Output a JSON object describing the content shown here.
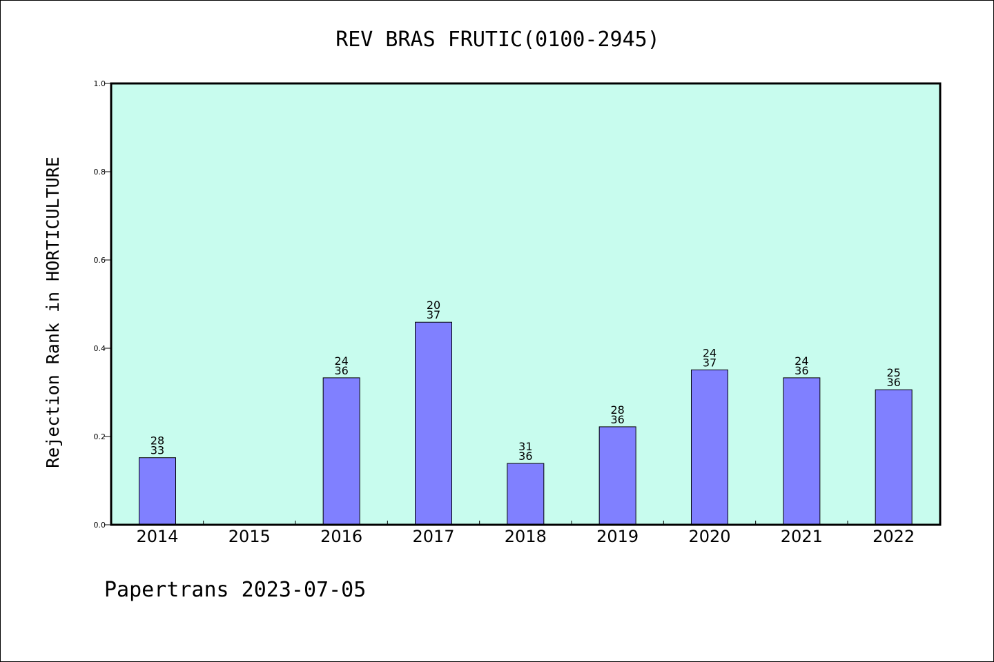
{
  "chart_data": {
    "type": "bar",
    "title": "REV BRAS FRUTIC(0100-2945)",
    "xlabel": "",
    "ylabel": "Rejection Rank in HORTICULTURE",
    "ylim": [
      0,
      1.0
    ],
    "yticks": [
      "0.0",
      "0.2",
      "0.4",
      "0.6",
      "0.8",
      "1.0"
    ],
    "categories": [
      "2014",
      "2015",
      "2016",
      "2017",
      "2018",
      "2019",
      "2020",
      "2021",
      "2022"
    ],
    "values": [
      0.152,
      null,
      0.333,
      0.459,
      0.139,
      0.222,
      0.351,
      0.333,
      0.306
    ],
    "labels_top": [
      "28",
      "",
      "24",
      "20",
      "31",
      "28",
      "24",
      "24",
      "25"
    ],
    "labels_bottom": [
      "33",
      "",
      "36",
      "37",
      "36",
      "36",
      "37",
      "36",
      "36"
    ],
    "grid": false,
    "legend": "none",
    "colors": {
      "plot_background": "#c8fcee",
      "bar_fill": "#8080ff",
      "bar_stroke": "#000000"
    }
  },
  "footer": "Papertrans 2023-07-05"
}
